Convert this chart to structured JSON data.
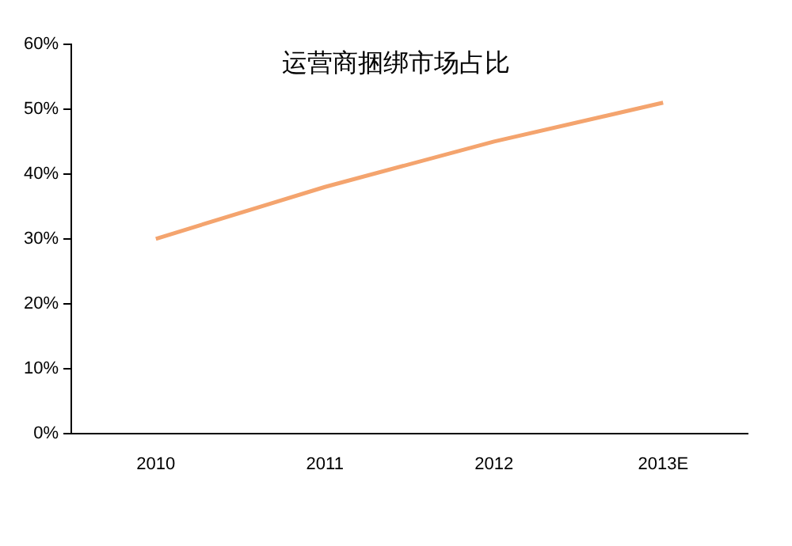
{
  "chart_data": {
    "type": "line",
    "title": "运营商捆绑市场占比",
    "categories": [
      "2010",
      "2011",
      "2012",
      "2013E"
    ],
    "series": [
      {
        "color": "#f4a46e",
        "values": [
          30,
          38,
          45,
          51
        ]
      }
    ],
    "ylim": [
      0,
      60
    ],
    "yticks": [
      {
        "value": 0,
        "label": "0%"
      },
      {
        "value": 10,
        "label": "10%"
      },
      {
        "value": 20,
        "label": "20%"
      },
      {
        "value": 30,
        "label": "30%"
      },
      {
        "value": 40,
        "label": "40%"
      },
      {
        "value": 50,
        "label": "50%"
      },
      {
        "value": 60,
        "label": "60%"
      }
    ],
    "grid": false,
    "legend": false,
    "marker": "none",
    "line_style": "solid"
  }
}
